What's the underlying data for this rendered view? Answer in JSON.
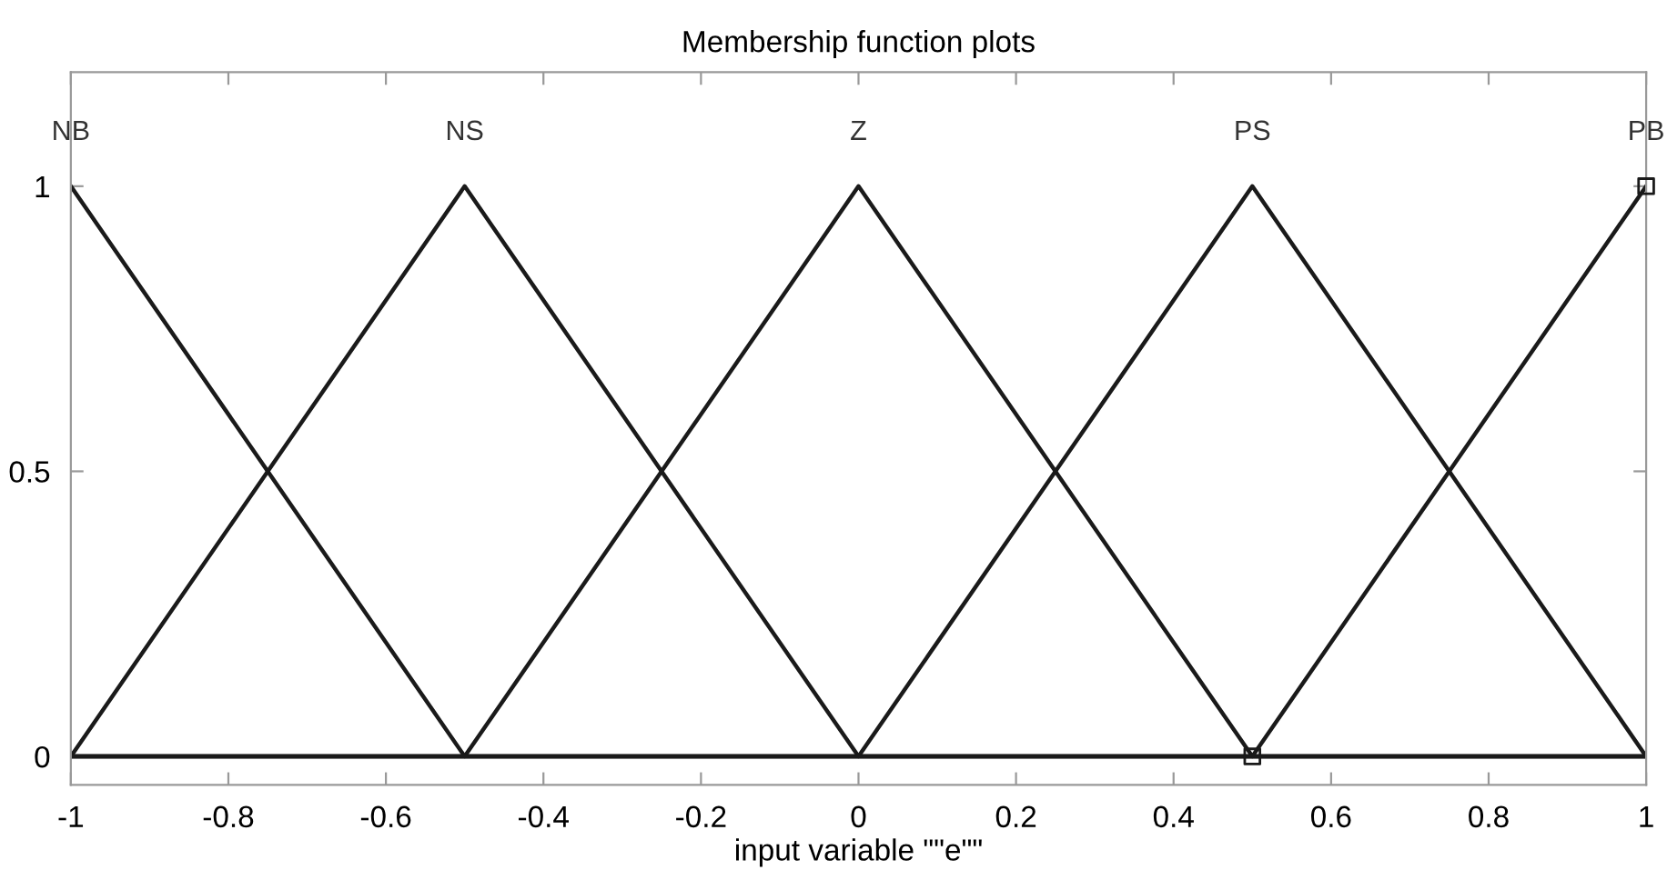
{
  "chart_data": {
    "type": "line",
    "title": "Membership function plots",
    "xlabel": "input variable \"\"e\"\"",
    "series": [
      {
        "name": "NB",
        "color": "#1a1a1a",
        "x": [
          -1,
          -0.5,
          1
        ],
        "values": [
          1,
          0,
          0
        ]
      },
      {
        "name": "NS",
        "color": "#1a1a1a",
        "x": [
          -1,
          -0.5,
          0,
          1
        ],
        "values": [
          0,
          1,
          0,
          0
        ]
      },
      {
        "name": "Z",
        "color": "#1a1a1a",
        "x": [
          -1,
          -0.5,
          0,
          0.5,
          1
        ],
        "values": [
          0,
          0,
          1,
          0,
          0
        ]
      },
      {
        "name": "PS",
        "color": "#1a1a1a",
        "x": [
          -1,
          0,
          0.5,
          1
        ],
        "values": [
          0,
          0,
          1,
          0
        ]
      },
      {
        "name": "PB",
        "color": "#1a1a1a",
        "x": [
          -1,
          0.5,
          1
        ],
        "values": [
          0,
          0,
          1
        ]
      },
      {
        "type": "scatter",
        "marker": "square",
        "color": "#1a1a1a",
        "x": [
          0.5,
          1
        ],
        "values": [
          0,
          1
        ]
      }
    ],
    "xlim": [
      -1,
      1
    ],
    "ylim": [
      -0.05,
      1.2
    ],
    "xticks": [
      -1,
      -0.8,
      -0.6,
      -0.4,
      -0.2,
      0,
      0.2,
      0.4,
      0.6,
      0.8,
      1
    ],
    "yticks": [
      0,
      0.5,
      1
    ],
    "grid": false,
    "legend": false,
    "marker": "none",
    "line_style": "solid"
  }
}
